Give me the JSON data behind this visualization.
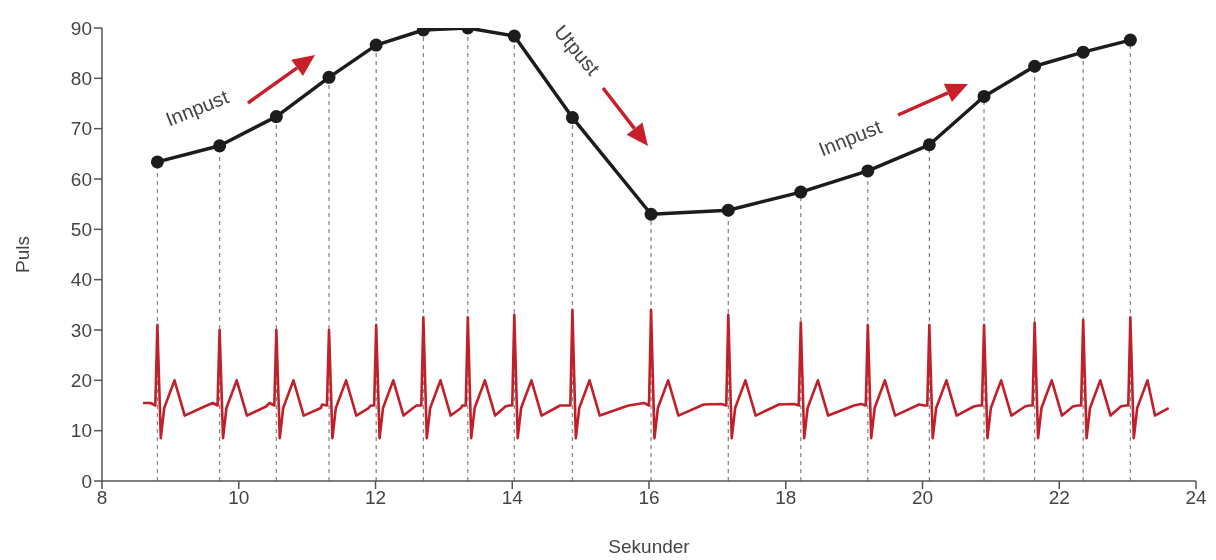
{
  "chart_data": {
    "type": "line",
    "xlabel": "Sekunder",
    "ylabel": "Puls",
    "xlim": [
      8,
      24
    ],
    "xticks": [
      8,
      10,
      12,
      14,
      16,
      18,
      20,
      22,
      24
    ],
    "ylim": [
      0,
      90
    ],
    "yticks": [
      0,
      10,
      20,
      30,
      40,
      50,
      60,
      70,
      80,
      90
    ],
    "grid": false,
    "series": [
      {
        "color": "#1c1c1c",
        "marker": "circle",
        "line_style": "solid",
        "x": [
          8.81,
          9.72,
          10.55,
          11.32,
          12.01,
          12.7,
          13.35,
          14.03,
          14.88,
          16.03,
          17.16,
          18.22,
          19.2,
          20.1,
          20.9,
          21.64,
          22.35,
          23.04
        ],
        "values": [
          63.4,
          66.6,
          72.4,
          80.2,
          86.6,
          89.6,
          90,
          88.4,
          72.2,
          53,
          53.8,
          57.4,
          61.6,
          66.8,
          76.4,
          82.4,
          85.2,
          87.6
        ]
      },
      {
        "color": "#c0202a",
        "marker": "none",
        "line_style": "solid",
        "x": [
          8.6,
          8.71,
          8.78,
          8.81,
          8.86,
          8.91,
          9.06,
          9.21,
          9.5,
          9.62,
          9.69,
          9.72,
          9.77,
          9.82,
          9.97,
          10.12,
          10.4,
          10.45,
          10.52,
          10.55,
          10.6,
          10.65,
          10.8,
          10.95,
          11.2,
          11.22,
          11.29,
          11.32,
          11.37,
          11.42,
          11.57,
          11.72,
          11.9,
          11.93,
          11.98,
          12.01,
          12.06,
          12.11,
          12.26,
          12.41,
          12.55,
          12.6,
          12.67,
          12.7,
          12.75,
          12.8,
          12.95,
          13.1,
          13.25,
          13.27,
          13.32,
          13.35,
          13.4,
          13.45,
          13.6,
          13.75,
          13.9,
          13.95,
          14,
          14.03,
          14.08,
          14.13,
          14.28,
          14.43,
          14.7,
          14.8,
          14.85,
          14.88,
          14.93,
          14.98,
          15.13,
          15.28,
          15.7,
          15.93,
          16,
          16.03,
          16.08,
          16.13,
          16.28,
          16.43,
          16.8,
          17.06,
          17.13,
          17.16,
          17.21,
          17.26,
          17.41,
          17.56,
          17.9,
          18.12,
          18.19,
          18.22,
          18.27,
          18.32,
          18.47,
          18.62,
          19,
          19.1,
          19.17,
          19.2,
          19.25,
          19.3,
          19.45,
          19.6,
          19.95,
          20.03,
          20.07,
          20.1,
          20.15,
          20.2,
          20.35,
          20.5,
          20.75,
          20.82,
          20.87,
          20.9,
          20.95,
          21,
          21.15,
          21.3,
          21.5,
          21.56,
          21.61,
          21.64,
          21.69,
          21.74,
          21.89,
          22.04,
          22.2,
          22.27,
          22.32,
          22.35,
          22.4,
          22.45,
          22.6,
          22.75,
          22.9,
          22.97,
          23.01,
          23.04,
          23.09,
          23.14,
          23.29,
          23.4,
          23.6
        ],
        "values": [
          15.5,
          15.5,
          15,
          31,
          8.5,
          14.5,
          20,
          13,
          14.8,
          15.5,
          15,
          30,
          8.5,
          14.5,
          20,
          13,
          14.8,
          15.5,
          15,
          30,
          8.5,
          14.5,
          20,
          13,
          14.5,
          15.2,
          15,
          30,
          8.5,
          14.5,
          20,
          13,
          14.5,
          15,
          15,
          31,
          8.5,
          14.5,
          20,
          13,
          14.5,
          15,
          15,
          32.5,
          8.5,
          14.5,
          20,
          13,
          14.5,
          15,
          15,
          32.5,
          8.5,
          14.5,
          20,
          13,
          14.8,
          15,
          15,
          33,
          8.5,
          14.5,
          20,
          13,
          15,
          15,
          15,
          34,
          8.5,
          14.5,
          20,
          13,
          15,
          15.5,
          15,
          34,
          8.5,
          14.5,
          20,
          13,
          15.2,
          15.3,
          15,
          33,
          8.5,
          14.5,
          20,
          13,
          15.2,
          15.3,
          15,
          31.5,
          8.5,
          14.5,
          20,
          13,
          15,
          15.3,
          15,
          31,
          8.5,
          14.5,
          20,
          13,
          15.2,
          15,
          15,
          31,
          8.5,
          14.5,
          20,
          13,
          14.8,
          15,
          15,
          31,
          8.5,
          14.5,
          20,
          13,
          14.8,
          15,
          15,
          31.5,
          8.5,
          14.5,
          20,
          13,
          14.8,
          15,
          15,
          32,
          8.5,
          14.5,
          20,
          13,
          14.8,
          15,
          15,
          32.5,
          8.5,
          14.5,
          20,
          13,
          14.5
        ]
      }
    ],
    "ref_lines": [
      {
        "axis": "x",
        "value": 8.81,
        "color": "#888888",
        "line_style": "dashed"
      },
      {
        "axis": "x",
        "value": 9.72,
        "color": "#888888",
        "line_style": "dashed"
      },
      {
        "axis": "x",
        "value": 10.55,
        "color": "#888888",
        "line_style": "dashed"
      },
      {
        "axis": "x",
        "value": 11.32,
        "color": "#888888",
        "line_style": "dashed"
      },
      {
        "axis": "x",
        "value": 12.01,
        "color": "#888888",
        "line_style": "dashed"
      },
      {
        "axis": "x",
        "value": 12.7,
        "color": "#888888",
        "line_style": "dashed"
      },
      {
        "axis": "x",
        "value": 13.35,
        "color": "#888888",
        "line_style": "dashed"
      },
      {
        "axis": "x",
        "value": 14.03,
        "color": "#888888",
        "line_style": "dashed"
      },
      {
        "axis": "x",
        "value": 14.88,
        "color": "#888888",
        "line_style": "dashed"
      },
      {
        "axis": "x",
        "value": 16.03,
        "color": "#888888",
        "line_style": "dashed"
      },
      {
        "axis": "x",
        "value": 17.16,
        "color": "#888888",
        "line_style": "dashed"
      },
      {
        "axis": "x",
        "value": 18.22,
        "color": "#888888",
        "line_style": "dashed"
      },
      {
        "axis": "x",
        "value": 19.2,
        "color": "#888888",
        "line_style": "dashed"
      },
      {
        "axis": "x",
        "value": 20.1,
        "color": "#888888",
        "line_style": "dashed"
      },
      {
        "axis": "x",
        "value": 20.9,
        "color": "#888888",
        "line_style": "dashed"
      },
      {
        "axis": "x",
        "value": 21.64,
        "color": "#888888",
        "line_style": "dashed"
      },
      {
        "axis": "x",
        "value": 22.35,
        "color": "#888888",
        "line_style": "dashed"
      },
      {
        "axis": "x",
        "value": 23.04,
        "color": "#888888",
        "line_style": "dashed"
      }
    ],
    "annotations": [
      "Innpust",
      "Utpust",
      "Innpust"
    ]
  }
}
